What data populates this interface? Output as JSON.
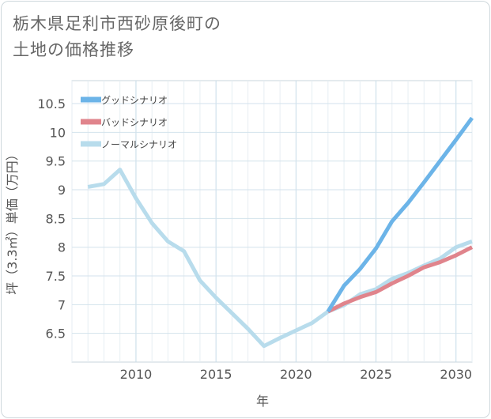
{
  "title_lines": [
    "栃木県足利市西砂原後町の",
    "土地の価格推移"
  ],
  "chart_data": {
    "type": "line",
    "xlabel": "年",
    "ylabel": "坪（3.3㎡）単価（万円）",
    "xlim": [
      2006,
      2031
    ],
    "ylim": [
      6.0,
      10.9
    ],
    "x_ticks": [
      2010,
      2015,
      2020,
      2025,
      2030
    ],
    "y_ticks": [
      6.5,
      7,
      7.5,
      8,
      8.5,
      9,
      9.5,
      10,
      10.5
    ],
    "grid": true,
    "legend_position": "top-left",
    "series": [
      {
        "name": "グッドシナリオ",
        "color": "#6cb4e8",
        "x": [
          2022,
          2023,
          2024,
          2025,
          2026,
          2027,
          2028,
          2029,
          2030,
          2031
        ],
        "values": [
          6.88,
          7.33,
          7.62,
          7.98,
          8.45,
          8.77,
          9.13,
          9.5,
          9.87,
          10.25
        ]
      },
      {
        "name": "バッドシナリオ",
        "color": "#e0848c",
        "x": [
          2022,
          2023,
          2024,
          2025,
          2026,
          2027,
          2028,
          2029,
          2030,
          2031
        ],
        "values": [
          6.88,
          7.02,
          7.13,
          7.22,
          7.37,
          7.5,
          7.65,
          7.74,
          7.86,
          8.0
        ]
      },
      {
        "name": "ノーマルシナリオ",
        "color": "#b8dcec",
        "x": [
          2007,
          2008,
          2009,
          2010,
          2011,
          2012,
          2013,
          2014,
          2015,
          2016,
          2017,
          2018,
          2019,
          2020,
          2021,
          2022,
          2023,
          2024,
          2025,
          2026,
          2027,
          2028,
          2029,
          2030,
          2031
        ],
        "values": [
          9.05,
          9.1,
          9.35,
          8.85,
          8.42,
          8.1,
          7.93,
          7.42,
          7.12,
          6.85,
          6.58,
          6.28,
          6.42,
          6.55,
          6.68,
          6.88,
          6.99,
          7.18,
          7.27,
          7.45,
          7.55,
          7.68,
          7.8,
          8.0,
          8.1
        ]
      }
    ]
  }
}
